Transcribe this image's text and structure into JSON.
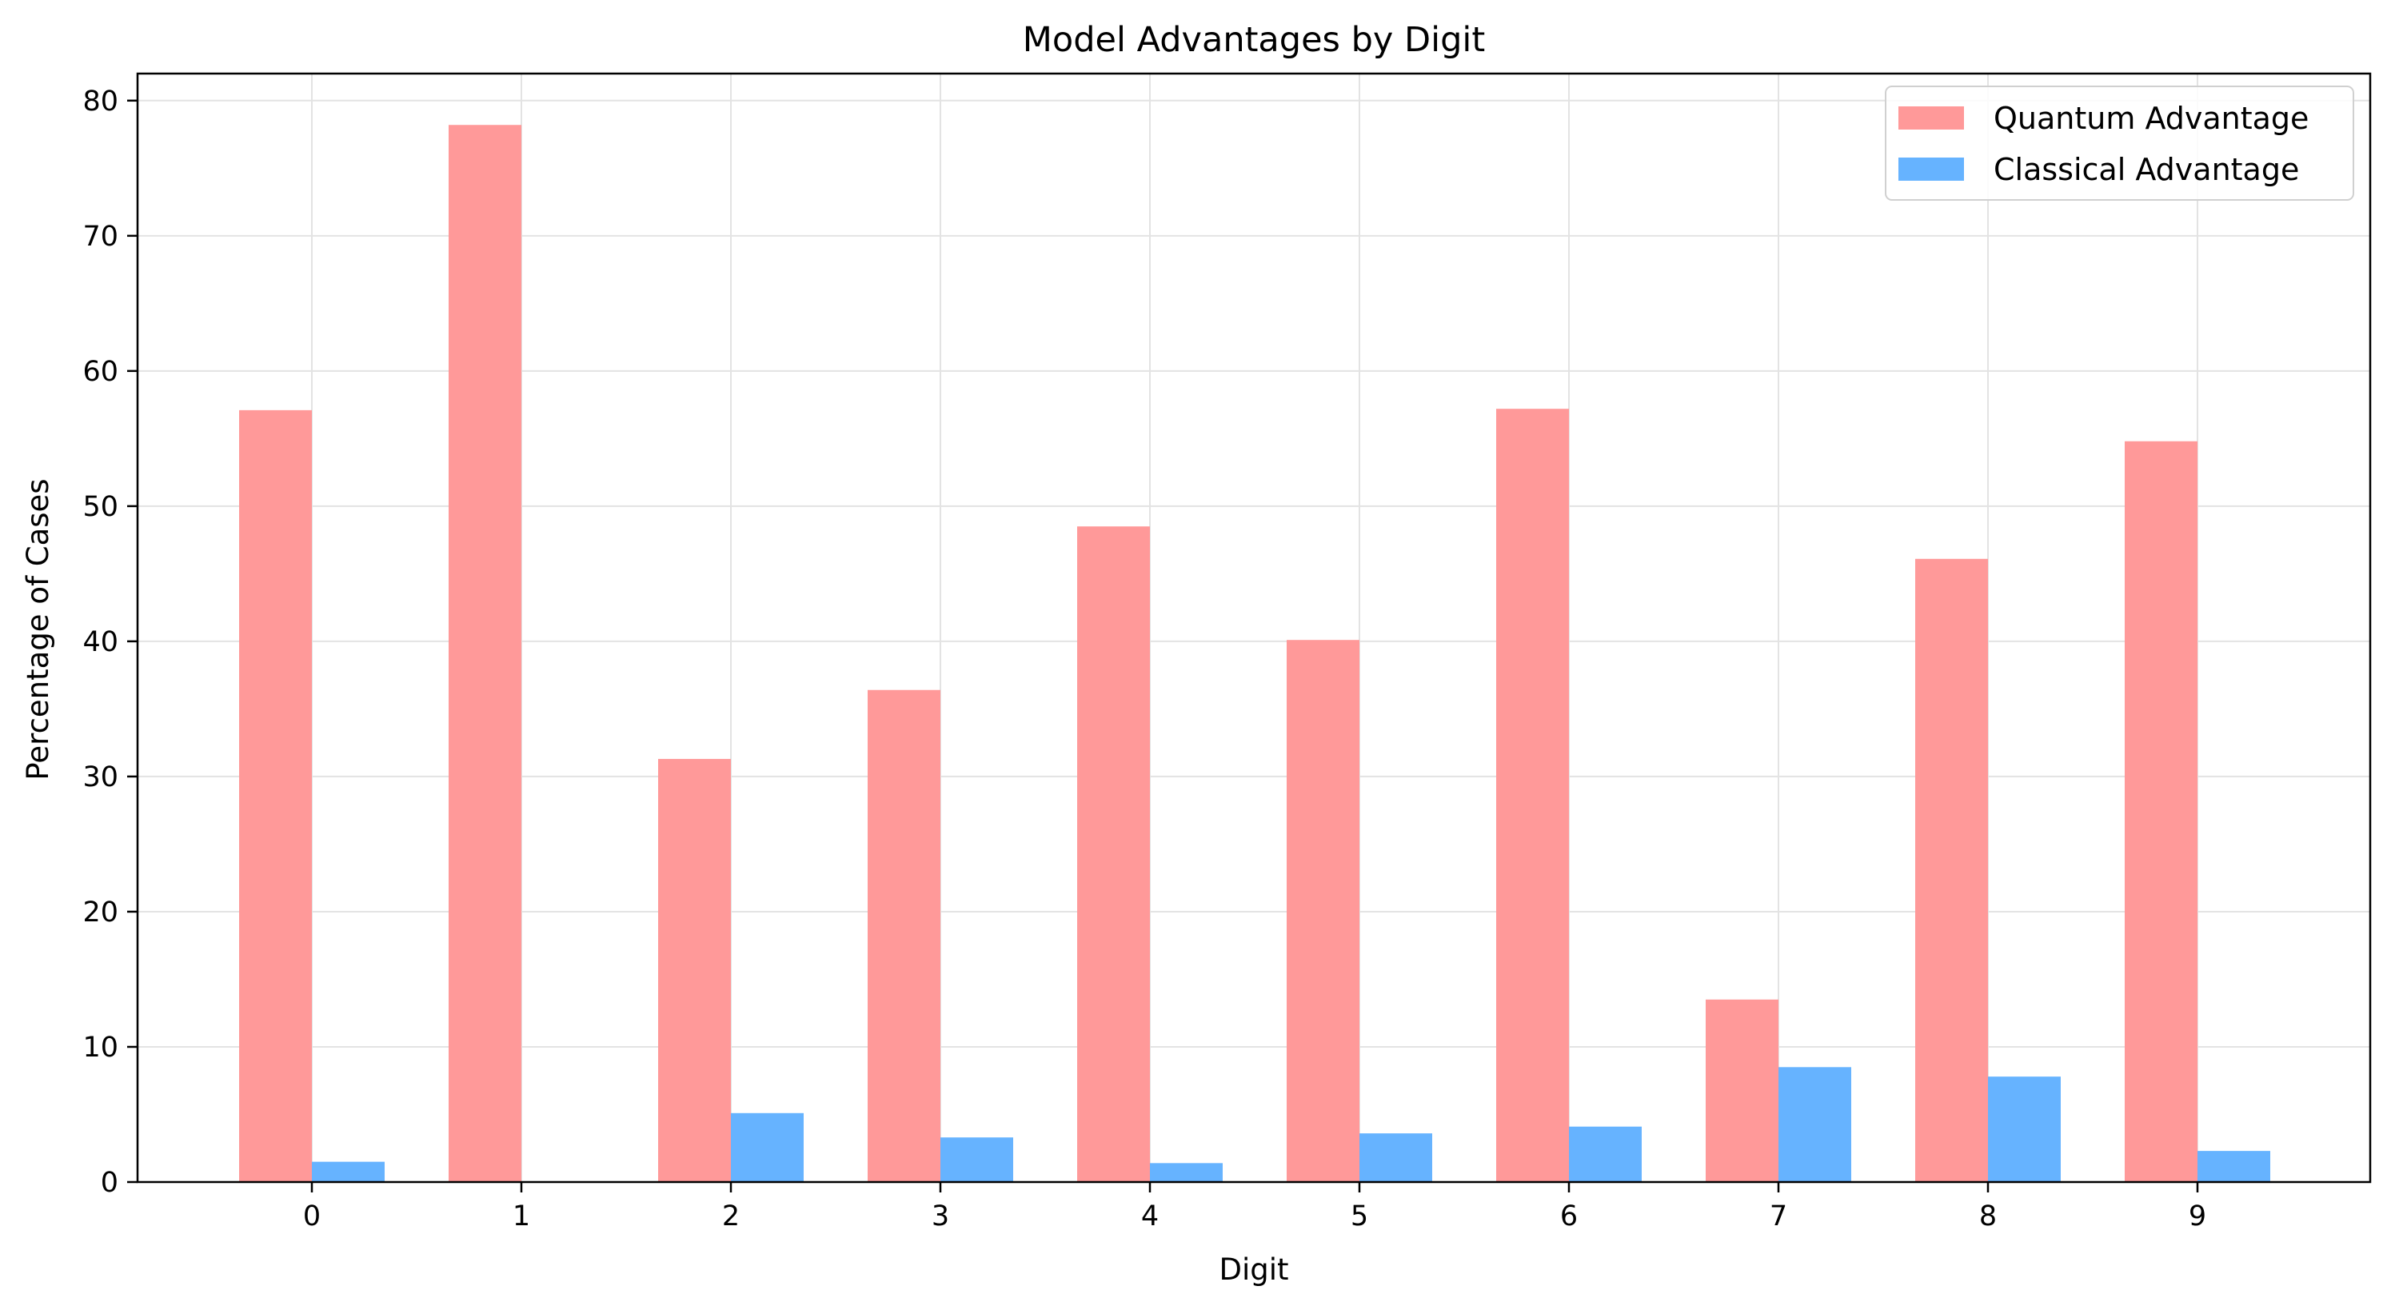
{
  "chart_data": {
    "type": "bar",
    "title": "Model Advantages by Digit",
    "xlabel": "Digit",
    "ylabel": "Percentage of Cases",
    "categories": [
      "0",
      "1",
      "2",
      "3",
      "4",
      "5",
      "6",
      "7",
      "8",
      "9"
    ],
    "series": [
      {
        "name": "Quantum Advantage",
        "color": "#ff9999",
        "values": [
          57.1,
          78.2,
          31.3,
          36.4,
          48.5,
          40.1,
          57.2,
          13.5,
          46.1,
          54.8
        ]
      },
      {
        "name": "Classical Advantage",
        "color": "#66b3ff",
        "values": [
          1.5,
          0.0,
          5.1,
          3.3,
          1.4,
          3.6,
          4.1,
          8.5,
          7.8,
          2.3
        ]
      }
    ],
    "ylim": [
      0,
      82
    ],
    "yticks": [
      0,
      10,
      20,
      30,
      40,
      50,
      60,
      70,
      80
    ],
    "grid": true,
    "legend": "top-right"
  }
}
